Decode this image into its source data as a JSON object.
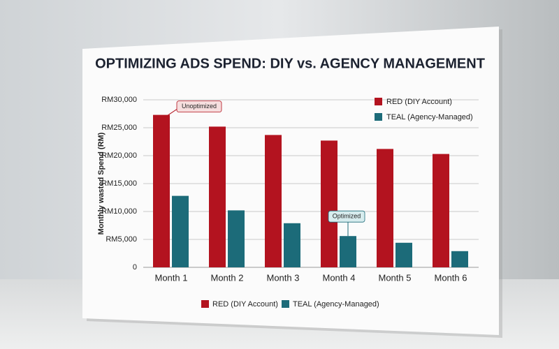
{
  "chart_data": {
    "type": "bar",
    "title": "OPTIMIZING ADS SPEND: DIY vs. AGENCY MANAGEMENT",
    "y_label": "Monthly wasted Spend (RM)",
    "categories": [
      "Month 1",
      "Month 2",
      "Month 3",
      "Month 4",
      "Month 5",
      "Month 6"
    ],
    "series": [
      {
        "name": "RED (DIY Account)",
        "color": "#b3131f",
        "values": [
          27300,
          25200,
          23700,
          22700,
          21200,
          20300
        ]
      },
      {
        "name": "TEAL (Agency-Managed)",
        "color": "#1c6b79",
        "values": [
          12800,
          10200,
          7900,
          5600,
          4400,
          2900
        ]
      }
    ],
    "annotations": [
      "Unoptimized",
      "Optimized"
    ],
    "ylim": [
      0,
      30000
    ],
    "yticks": [
      0,
      {
        "value": 5000,
        "label": "RM5,000"
      },
      {
        "value": 10000,
        "label": "RM10,000"
      },
      {
        "value": 15000,
        "label": "RM15,000"
      },
      {
        "value": 20000,
        "label": "RM20,000"
      },
      {
        "value": 25000,
        "label": "RM25,000"
      },
      {
        "value": 30000,
        "label": "RM30,000"
      }
    ],
    "grid": true,
    "legend": "top-right"
  }
}
